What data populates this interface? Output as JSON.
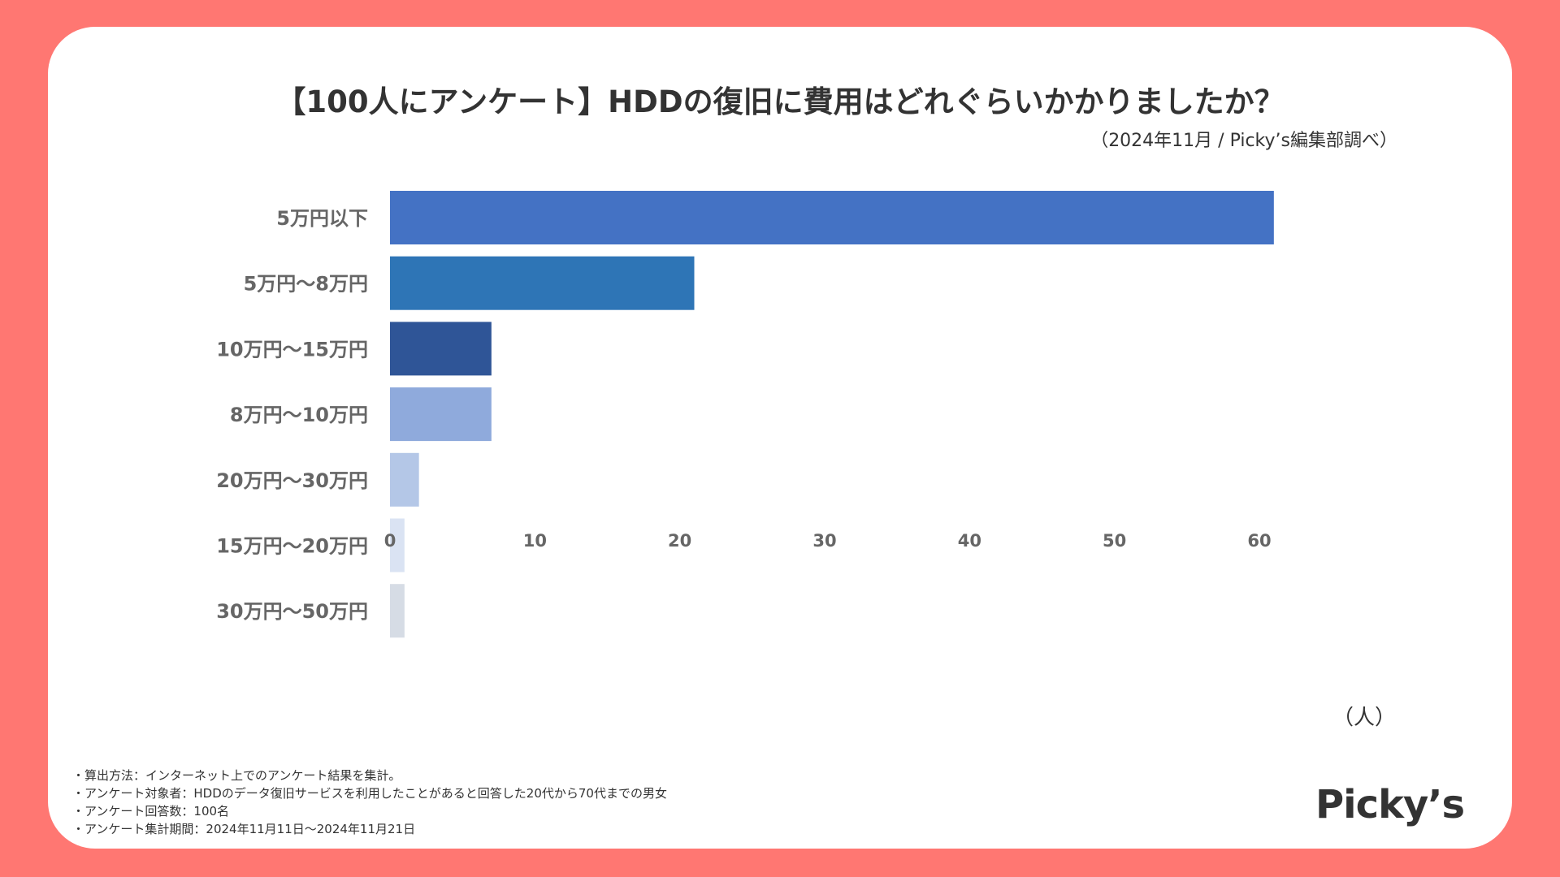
{
  "title": "【100人にアンケート】HDDの復旧に費用はどれぐらいかかりましたか？",
  "source": "（2024年11月 / Picky’s編集部調べ）",
  "unit_label": "（人）",
  "logo_text": "Picky’s",
  "notes": [
    "・算出方法：インターネット上でのアンケート結果を集計。",
    "・アンケート対象者：HDDのデータ復旧サービスを利用したことがあると回答した20代から70代までの男女",
    "・アンケート回答数：100名",
    "・アンケート集計期間：2024年11月11日〜2024年11月21日"
  ],
  "colors": {
    "background": "#FF7772",
    "card": "#FFFFFF",
    "text": "#333333",
    "axis_text": "#666666"
  },
  "chart_data": {
    "type": "bar",
    "orientation": "horizontal",
    "title": "【100人にアンケート】HDDの復旧に費用はどれぐらいかかりましたか？",
    "xlabel": "（人）",
    "ylabel": "",
    "xlim": [
      0,
      60
    ],
    "xticks": [
      0,
      10,
      20,
      30,
      40,
      50,
      60
    ],
    "grid": false,
    "categories": [
      "5万円以下",
      "5万円〜8万円",
      "10万円〜15万円",
      "8万円〜10万円",
      "20万円〜30万円",
      "15万円〜20万円",
      "30万円〜50万円"
    ],
    "values": [
      61,
      21,
      7,
      7,
      2,
      1,
      1
    ],
    "bar_colors": [
      "#4472C4",
      "#2E75B6",
      "#2F5597",
      "#8FAADC",
      "#B4C7E7",
      "#DAE3F3",
      "#D6DCE5"
    ]
  }
}
